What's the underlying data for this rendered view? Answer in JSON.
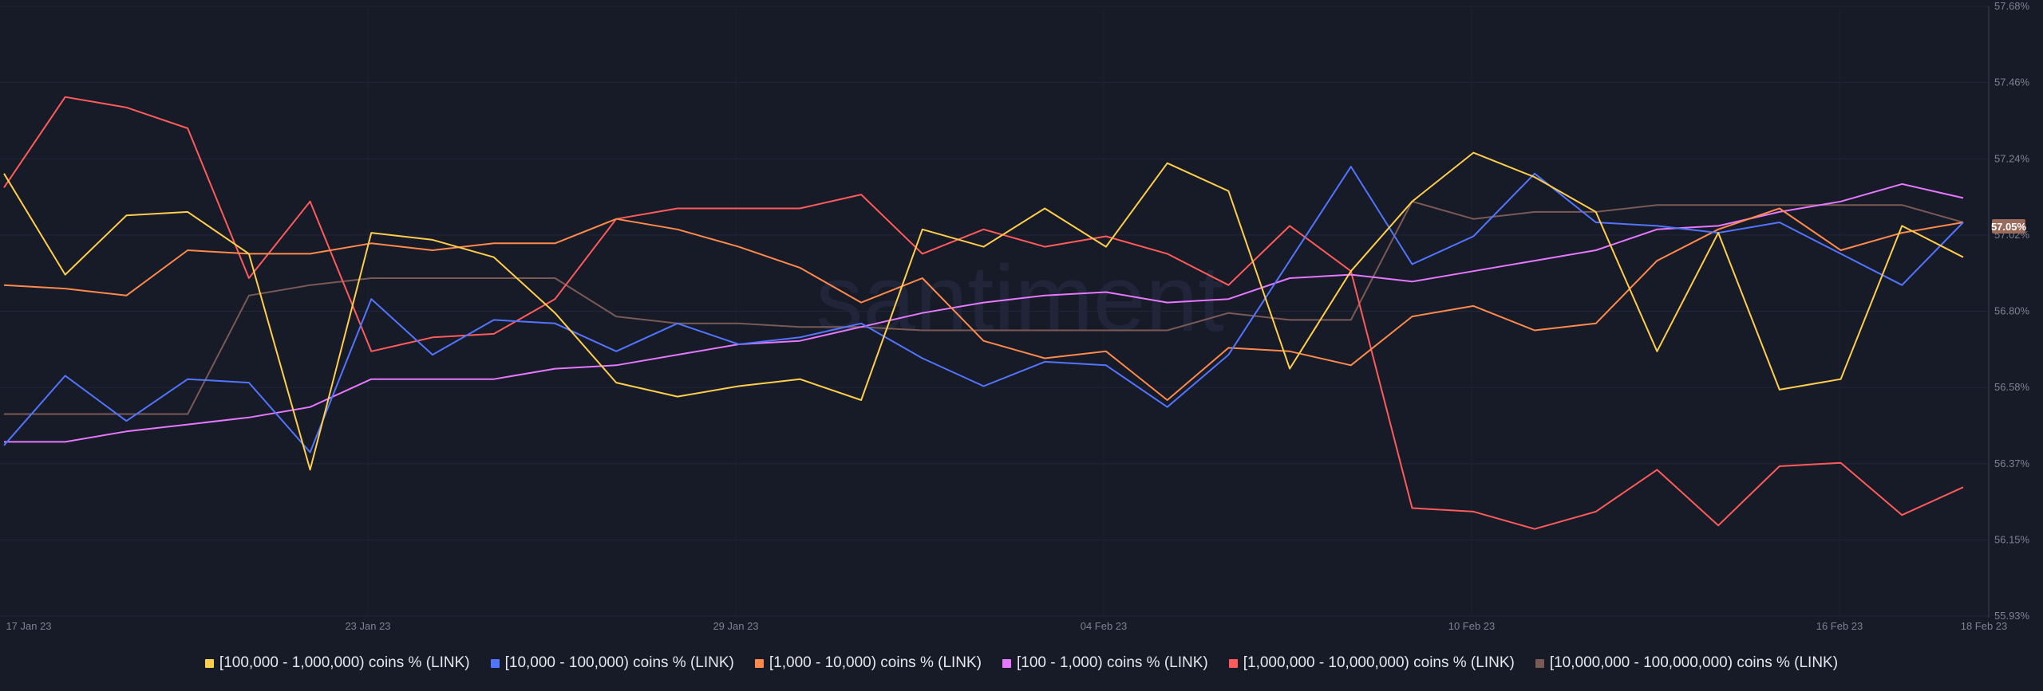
{
  "chart_data": {
    "type": "line",
    "watermark": "santiment",
    "x_ticks": [
      "17 Jan 23",
      "23 Jan 23",
      "29 Jan 23",
      "04 Feb 23",
      "10 Feb 23",
      "16 Feb 23",
      "18 Feb 23"
    ],
    "y_ticks": [
      "57.68%",
      "57.46%",
      "57.24%",
      "57.02%",
      "56.80%",
      "56.58%",
      "56.37%",
      "56.15%",
      "55.93%"
    ],
    "ylim": [
      55.93,
      57.68
    ],
    "current_value_label": "57.05%",
    "current_value_color": "#9a6b5a",
    "series": [
      {
        "name": "[100,000  - 1,000,000) coins % (LINK)",
        "color": "#ffce4b",
        "values": [
          57.2,
          56.91,
          57.08,
          57.09,
          56.97,
          56.35,
          57.03,
          57.01,
          56.96,
          56.8,
          56.6,
          56.56,
          56.59,
          56.61,
          56.55,
          57.04,
          56.99,
          57.1,
          56.99,
          57.23,
          57.15,
          56.64,
          56.92,
          57.12,
          57.26,
          57.19,
          57.09,
          56.69,
          57.03,
          56.58,
          56.61,
          57.05,
          56.96
        ]
      },
      {
        "name": "[10,000 - 100,000) coins % (LINK)",
        "color": "#5275ff",
        "values": [
          56.42,
          56.62,
          56.49,
          56.61,
          56.6,
          56.4,
          56.84,
          56.68,
          56.78,
          56.77,
          56.69,
          56.77,
          56.71,
          56.73,
          56.77,
          56.67,
          56.59,
          56.66,
          56.65,
          56.53,
          56.68,
          56.95,
          57.22,
          56.94,
          57.02,
          57.2,
          57.06,
          57.05,
          57.03,
          57.06,
          56.97,
          56.88,
          57.06
        ]
      },
      {
        "name": "[1,000 - 10,000) coins % (LINK)",
        "color": "#ff8a4b",
        "values": [
          56.88,
          56.87,
          56.85,
          56.98,
          56.97,
          56.97,
          57.0,
          56.98,
          57.0,
          57.0,
          57.07,
          57.04,
          56.99,
          56.93,
          56.83,
          56.9,
          56.72,
          56.67,
          56.69,
          56.55,
          56.7,
          56.69,
          56.65,
          56.79,
          56.82,
          56.75,
          56.77,
          56.95,
          57.04,
          57.1,
          56.98,
          57.03,
          57.06
        ]
      },
      {
        "name": "[100 - 1,000) coins % (LINK)",
        "color": "#e678ff",
        "values": [
          56.43,
          56.43,
          56.46,
          56.48,
          56.5,
          56.53,
          56.61,
          56.61,
          56.61,
          56.64,
          56.65,
          56.68,
          56.71,
          56.72,
          56.76,
          56.8,
          56.83,
          56.85,
          56.86,
          56.83,
          56.84,
          56.9,
          56.91,
          56.89,
          56.92,
          56.95,
          56.98,
          57.04,
          57.05,
          57.09,
          57.12,
          57.17,
          57.13
        ]
      },
      {
        "name": "[1,000,000 - 10,000,000) coins % (LINK)",
        "color": "#ff5b5b",
        "values": [
          57.16,
          57.42,
          57.39,
          57.33,
          56.9,
          57.12,
          56.69,
          56.73,
          56.74,
          56.84,
          57.07,
          57.1,
          57.1,
          57.1,
          57.14,
          56.97,
          57.04,
          56.99,
          57.02,
          56.97,
          56.88,
          57.05,
          56.92,
          56.24,
          56.23,
          56.18,
          56.23,
          56.35,
          56.19,
          56.36,
          56.37,
          56.22,
          56.3
        ]
      },
      {
        "name": "[10,000,000 - 100,000,000) coins % (LINK)",
        "color": "#7a5a55",
        "values": [
          56.51,
          56.51,
          56.51,
          56.51,
          56.85,
          56.88,
          56.9,
          56.9,
          56.9,
          56.9,
          56.79,
          56.77,
          56.77,
          56.76,
          56.76,
          56.75,
          56.75,
          56.75,
          56.75,
          56.75,
          56.8,
          56.78,
          56.78,
          57.12,
          57.07,
          57.09,
          57.09,
          57.11,
          57.11,
          57.11,
          57.11,
          57.11,
          57.06
        ]
      }
    ]
  }
}
